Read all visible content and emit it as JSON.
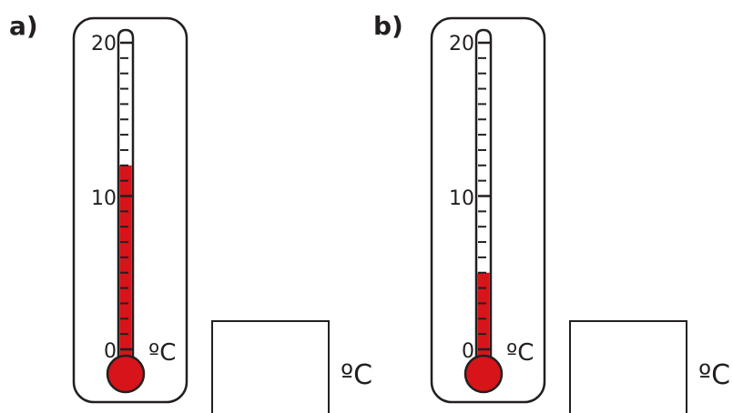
{
  "thermometers": [
    {
      "label": "a)",
      "reading": 12,
      "scale_min": 0,
      "scale_max": 20,
      "tick_labels": [
        "20",
        "10",
        "0"
      ],
      "unit": "ºC",
      "answer_unit": "ºC"
    },
    {
      "label": "b)",
      "reading": 5,
      "scale_min": 0,
      "scale_max": 20,
      "tick_labels": [
        "20",
        "10",
        "0"
      ],
      "unit": "ºC",
      "answer_unit": "ºC"
    }
  ],
  "colors": {
    "mercury": "#d7141a",
    "outline": "#231f20",
    "background": "#ffffff"
  }
}
